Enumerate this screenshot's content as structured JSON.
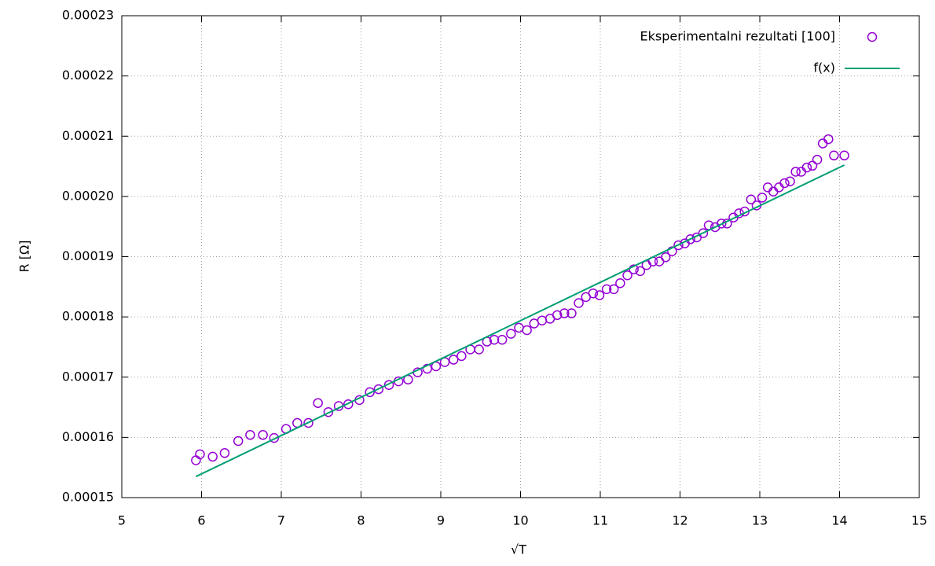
{
  "chart_data": {
    "type": "scatter",
    "xlabel": "√T",
    "ylabel": "R [Ω]",
    "xlim": [
      5,
      15
    ],
    "xticks": [
      5,
      6,
      7,
      8,
      9,
      10,
      11,
      12,
      13,
      14,
      15
    ],
    "ylim": [
      0.00015,
      0.00023
    ],
    "yticks": [
      0.00015,
      0.00016,
      0.00017,
      0.00018,
      0.00019,
      {
        "value": 0.0002,
        "label": "0.00020"
      },
      0.00021,
      0.00022,
      0.00023
    ],
    "grid": true,
    "legend": "top-right",
    "series": [
      {
        "name": "Eksperimentalni rezultati [100]",
        "color": "#9400d3",
        "type": "scatter",
        "x": [
          5.93,
          5.98,
          6.14,
          6.29,
          6.46,
          6.61,
          6.77,
          6.91,
          7.06,
          7.2,
          7.34,
          7.46,
          7.59,
          7.72,
          7.84,
          7.98,
          8.11,
          8.22,
          8.35,
          8.47,
          8.59,
          8.71,
          8.83,
          8.94,
          9.05,
          9.16,
          9.26,
          9.37,
          9.48,
          9.58,
          9.67,
          9.77,
          9.88,
          9.98,
          10.08,
          10.17,
          10.27,
          10.37,
          10.46,
          10.55,
          10.64,
          10.73,
          10.82,
          10.91,
          10.99,
          11.08,
          11.17,
          11.25,
          11.34,
          11.42,
          11.5,
          11.58,
          11.66,
          11.74,
          11.82,
          11.9,
          11.98,
          12.06,
          12.13,
          12.21,
          12.29,
          12.36,
          12.44,
          12.52,
          12.59,
          12.67,
          12.74,
          12.81,
          12.89,
          12.96,
          13.03,
          13.1,
          13.17,
          13.24,
          13.31,
          13.38,
          13.45,
          13.52,
          13.59,
          13.66,
          13.72,
          13.79,
          13.86,
          13.93,
          14.06
        ],
        "values": [
          0.0001562,
          0.0001572,
          0.0001568,
          0.0001574,
          0.0001594,
          0.0001604,
          0.0001604,
          0.0001599,
          0.0001614,
          0.0001624,
          0.0001624,
          0.0001657,
          0.0001642,
          0.0001652,
          0.0001655,
          0.0001662,
          0.0001675,
          0.000168,
          0.0001687,
          0.0001693,
          0.0001696,
          0.0001708,
          0.0001714,
          0.0001718,
          0.0001725,
          0.0001729,
          0.0001735,
          0.0001746,
          0.0001746,
          0.0001759,
          0.0001762,
          0.0001762,
          0.0001772,
          0.0001782,
          0.0001778,
          0.0001789,
          0.0001794,
          0.0001797,
          0.0001803,
          0.0001806,
          0.0001806,
          0.0001823,
          0.0001833,
          0.0001839,
          0.0001836,
          0.0001846,
          0.0001846,
          0.0001856,
          0.0001869,
          0.0001879,
          0.0001876,
          0.0001886,
          0.0001892,
          0.0001892,
          0.0001899,
          0.0001909,
          0.0001919,
          0.0001922,
          0.0001929,
          0.0001932,
          0.0001939,
          0.0001952,
          0.0001949,
          0.0001955,
          0.0001955,
          0.0001965,
          0.0001972,
          0.0001975,
          0.0001995,
          0.0001985,
          0.0001998,
          0.0002015,
          0.0002008,
          0.0002015,
          0.0002022,
          0.0002025,
          0.0002041,
          0.0002041,
          0.0002048,
          0.0002051,
          0.0002061,
          0.0002088,
          0.0002095,
          0.0002068,
          0.0002068
        ]
      },
      {
        "name": "f(x)",
        "color": "#009e73",
        "type": "line",
        "x": [
          5.93,
          14.06
        ],
        "values": [
          0.0001535,
          0.0002052
        ]
      }
    ]
  }
}
